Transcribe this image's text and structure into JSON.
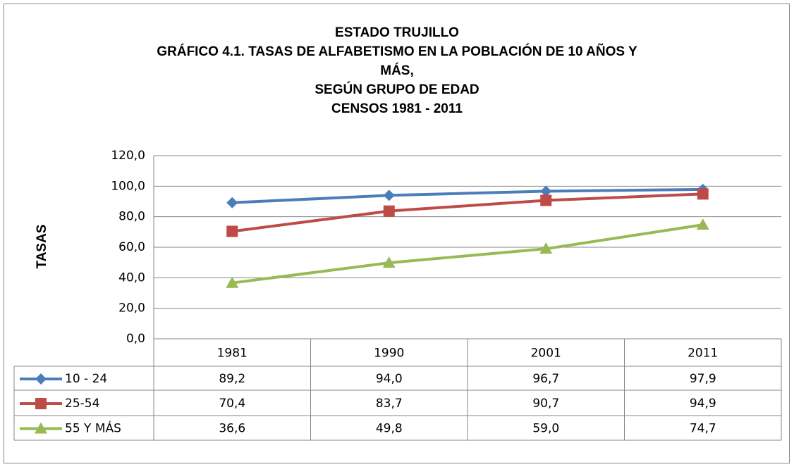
{
  "chart_data": {
    "type": "line",
    "title": [
      "ESTADO TRUJILLO",
      "GRÁFICO 4.1.  TASAS DE ALFABETISMO EN LA POBLACIÓN DE 10 AÑOS Y",
      "MÁS,",
      "SEGÚN GRUPO DE EDAD",
      "CENSOS 1981  - 2011"
    ],
    "y_label": "TASAS",
    "categories": [
      "1981",
      "1990",
      "2001",
      "2011"
    ],
    "series": [
      {
        "name": "10 -  24",
        "color": "#4a7ebb",
        "marker": "diamond",
        "values": [
          89.2,
          94.0,
          96.7,
          97.9
        ],
        "value_labels": [
          "89,2",
          "94,0",
          "96,7",
          "97,9"
        ]
      },
      {
        "name": "25-54",
        "color": "#be4b48",
        "marker": "square",
        "values": [
          70.4,
          83.7,
          90.7,
          94.9
        ],
        "value_labels": [
          "70,4",
          "83,7",
          "90,7",
          "94,9"
        ]
      },
      {
        "name": "55 Y MÁS",
        "color": "#98b954",
        "marker": "triangle",
        "values": [
          36.6,
          49.8,
          59.0,
          74.7
        ],
        "value_labels": [
          "36,6",
          "49,8",
          "59,0",
          "74,7"
        ]
      }
    ],
    "ylim": [
      0,
      120
    ],
    "yticks": [
      {
        "value": 0,
        "label": "0,0"
      },
      {
        "value": 20,
        "label": "20,0"
      },
      {
        "value": 40,
        "label": "40,0"
      },
      {
        "value": 60,
        "label": "60,0"
      },
      {
        "value": 80,
        "label": "80,0"
      },
      {
        "value": 100,
        "label": "100,0"
      },
      {
        "value": 120,
        "label": "120,0"
      }
    ],
    "grid": true
  }
}
